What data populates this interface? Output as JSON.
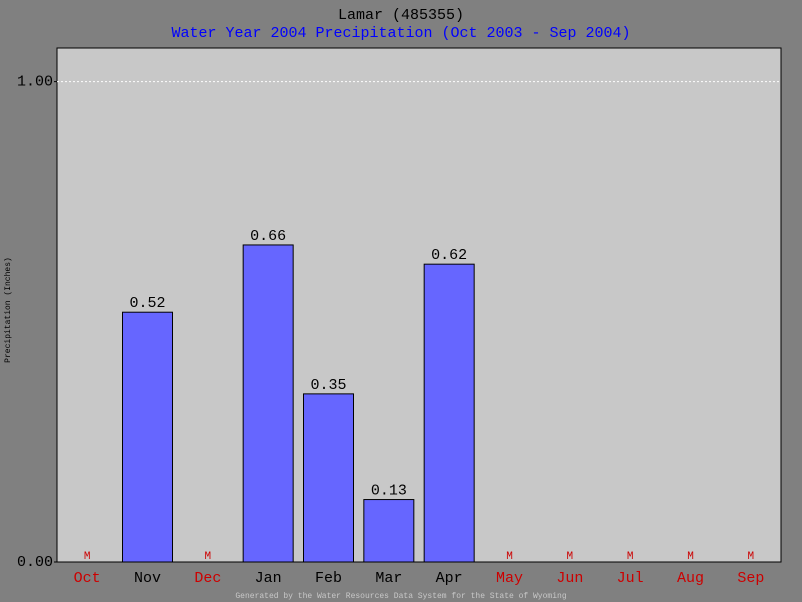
{
  "chart_data": {
    "type": "bar",
    "title": "Lamar (485355)",
    "subtitle": "Water Year 2004 Precipitation (Oct 2003 - Sep 2004)",
    "y_label": "Precipitation (Inches)",
    "footer": "Generated by the Water Resources Data System for the State of Wyoming",
    "categories": [
      "Oct",
      "Nov",
      "Dec",
      "Jan",
      "Feb",
      "Mar",
      "Apr",
      "May",
      "Jun",
      "Jul",
      "Aug",
      "Sep"
    ],
    "values": [
      null,
      0.52,
      null,
      0.66,
      0.35,
      0.13,
      0.62,
      null,
      null,
      null,
      null,
      null
    ],
    "value_labels": [
      "M",
      "0.52",
      "M",
      "0.66",
      "0.35",
      "0.13",
      "0.62",
      "M",
      "M",
      "M",
      "M",
      "M"
    ],
    "color": "#6666ff",
    "missing_color": "#cc0000",
    "ylim": [
      0,
      1.07
    ],
    "yticks": [
      {
        "value": 0,
        "label": "0.00"
      },
      {
        "value": 1,
        "label": "1.00"
      }
    ],
    "grid": true
  }
}
